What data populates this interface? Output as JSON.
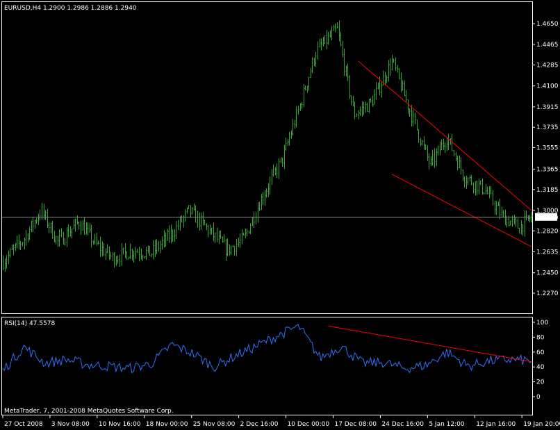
{
  "window": {
    "header": "EURUSD,H4  1.2900 1.2986 1.2886 1.2940",
    "copyright": "MetaTrader, 7, 2001-2008 MetaQuotes Software Corp."
  },
  "colors": {
    "background": "#000000",
    "frame": "#ffffff",
    "grid": "#3a3a3a",
    "candles": "#2fa82f",
    "trendline": "#ff0000",
    "rsi": "#3070ff",
    "current_price_box": "#ffffff"
  },
  "chart_data": [
    {
      "type": "line",
      "title": "EURUSD,H4  1.2900 1.2986 1.2886 1.2940",
      "style": "ohlc-bars",
      "ylim": [
        1.227,
        1.465
      ],
      "y_ticks": [
        "1.4650",
        "1.4465",
        "1.4285",
        "1.4100",
        "1.3915",
        "1.3735",
        "1.3555",
        "1.3365",
        "1.3185",
        "1.3000",
        "1.2820",
        "1.2635",
        "1.2450",
        "1.2270"
      ],
      "current_price": "1.2940",
      "x_ticks": [
        "27 Oct 2008",
        "3 Nov 08:00",
        "10 Nov 16:00",
        "18 Nov 00:00",
        "25 Nov 08:00",
        "2 Dec 16:00",
        "10 Dec 00:00",
        "17 Dec 08:00",
        "24 Dec 16:00",
        "5 Jan 12:00",
        "12 Jan 16:00",
        "19 Jan 20:00"
      ],
      "x_index_range": [
        0,
        125
      ],
      "series": [
        {
          "x": [
            0,
            5,
            9,
            13,
            18,
            22,
            26,
            31,
            35,
            40,
            44,
            48,
            53,
            57,
            61,
            66,
            70,
            74,
            79,
            83,
            87,
            92,
            96,
            101,
            105,
            109,
            114,
            118,
            122,
            125
          ],
          "values": [
            1.255,
            1.275,
            1.3,
            1.272,
            1.29,
            1.27,
            1.258,
            1.265,
            1.262,
            1.28,
            1.3,
            1.285,
            1.265,
            1.275,
            1.31,
            1.345,
            1.39,
            1.44,
            1.46,
            1.385,
            1.395,
            1.432,
            1.39,
            1.34,
            1.365,
            1.33,
            1.318,
            1.295,
            1.285,
            1.294
          ]
        }
      ],
      "annotations": [
        {
          "type": "trendline",
          "x": [
            84,
            125
          ],
          "y": [
            1.432,
            1.3
          ]
        },
        {
          "type": "trendline",
          "x": [
            92,
            125
          ],
          "y": [
            1.332,
            1.268
          ]
        }
      ]
    },
    {
      "type": "line",
      "title": "RSI(14) 47.5578",
      "ylim": [
        0,
        100
      ],
      "y_ticks": [
        "100",
        "80",
        "60",
        "40",
        "20",
        "0"
      ],
      "series": [
        {
          "x": [
            0,
            5,
            10,
            15,
            20,
            25,
            30,
            35,
            40,
            45,
            50,
            55,
            60,
            65,
            70,
            75,
            80,
            85,
            90,
            95,
            100,
            105,
            110,
            115,
            120,
            125
          ],
          "values": [
            35,
            67,
            45,
            50,
            43,
            41,
            38,
            44,
            70,
            58,
            40,
            55,
            68,
            82,
            95,
            52,
            68,
            45,
            46,
            38,
            42,
            60,
            41,
            48,
            50,
            48
          ]
        }
      ],
      "annotations": [
        {
          "type": "trendline",
          "x": [
            77,
            125
          ],
          "y": [
            95,
            47
          ]
        }
      ]
    }
  ]
}
